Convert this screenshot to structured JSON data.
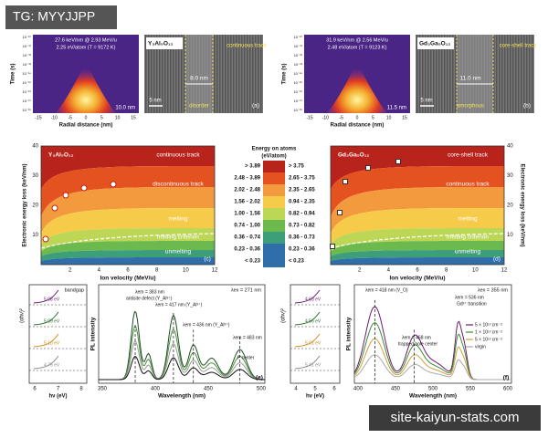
{
  "badge": "TG: MYYJJPP",
  "panel_a": {
    "y_label": "Time (s)",
    "x_label": "Radial distance (nm)",
    "x_ticks": [
      "-15",
      "-10",
      "-5",
      "0",
      "5",
      "10",
      "15"
    ],
    "y_ticks": [
      "10⁻¹⁰",
      "10⁻¹¹",
      "10⁻¹²",
      "10⁻¹³",
      "10⁻¹⁴",
      "10⁻¹⁵",
      "10⁻¹⁶",
      "10⁻¹⁷",
      "10⁻¹⁸"
    ],
    "beam": "27.6 keV/nm @ 2.93 MeV/u",
    "energy": "2.25 eV/atom (T = 9172 K)",
    "radius": "10.0 nm",
    "material": "Y₃Al₅O₁₂",
    "track": "continuous track",
    "width": "8.0 nm",
    "scale": "5 nm",
    "phase": "disorder",
    "tag": "(a)"
  },
  "panel_b": {
    "y_label": "Time (s)",
    "x_label": "Radial distance (nm)",
    "x_ticks": [
      "-15",
      "-10",
      "-5",
      "0",
      "5",
      "10",
      "15"
    ],
    "y_ticks": [
      "10⁻¹⁰",
      "10⁻¹¹",
      "10⁻¹²",
      "10⁻¹³",
      "10⁻¹⁴",
      "10⁻¹⁵",
      "10⁻¹⁶",
      "10⁻¹⁷",
      "10⁻¹⁸"
    ],
    "beam": "31.9 keV/nm @ 2.56 MeV/u",
    "energy": "2.48 eV/atom (T = 9123 K)",
    "radius": "11.5 nm",
    "material": "Gd₃Ga₅O₁₂",
    "track": "core-shell track",
    "width": "11.0 nm",
    "scale": "5 nm",
    "phase": "amorphous",
    "tag": "(b)"
  },
  "legend": {
    "title": "Energy on atoms",
    "unit": "(eV/atom)",
    "left": [
      "> 3.89",
      "2.48 - 3.89",
      "2.02 - 2.48",
      "1.56 - 2.02",
      "1.00 - 1.56",
      "0.74 - 1.00",
      "0.36 - 0.74",
      "0.23 - 0.36",
      "< 0.23"
    ],
    "right": [
      "> 3.75",
      "2.65 - 3.75",
      "2.35 - 2.65",
      "0.94 - 2.35",
      "0.82 - 0.94",
      "0.73 - 0.82",
      "0.36 - 0.73",
      "0.23 - 0.36",
      "< 0.23"
    ]
  },
  "panel_c": {
    "y_label": "Electronic energy loss (keV/nm)",
    "x_label": "Ion velocity (MeV/u)",
    "y_ticks": [
      10,
      20,
      30,
      40
    ],
    "x_ticks": [
      2,
      4,
      6,
      8,
      10,
      12
    ],
    "material": "Y₃Al₅O₁₂",
    "regions": [
      "continuous track",
      "discontinuous track",
      "melting",
      "melting criterion",
      "unmelting"
    ],
    "tag": "(c)"
  },
  "panel_d": {
    "y_label": "Electronic energy loss (keV/nm)",
    "x_label": "Ion velocity (MeV/u)",
    "y_ticks": [
      10,
      20,
      30,
      40
    ],
    "x_ticks": [
      2,
      4,
      6,
      8,
      10,
      12
    ],
    "material": "Gd₃Ga₅O₁₂",
    "regions": [
      "core-shell track",
      "continuous track",
      "melting",
      "melting criterion",
      "unmelting"
    ],
    "tag": "(d)"
  },
  "panel_e": {
    "inset_label": "bandgap",
    "gaps": [
      "5.08 eV",
      "5.09 eV",
      "5.10 eV",
      "4.75 eV"
    ],
    "inset_x_label": "hν (eV)",
    "inset_y_label": "(αhν)²",
    "inset_x_ticks": [
      6,
      7,
      8
    ],
    "y_label": "PL intensity",
    "x_label": "Wavelength (nm)",
    "x_ticks": [
      350,
      400,
      450,
      500
    ],
    "excitation": "λex = 271 nm",
    "peaks": [
      "λem = 383 nm",
      "antisite defect (Y_Al³⁺)",
      "λem = 417 nm (Y_Al³⁺)",
      "λem = 436 nm (Y_Al³⁺)",
      "λem = 483 nm",
      "F center"
    ],
    "tag": "(e)"
  },
  "panel_f": {
    "gaps": [
      "4.63 eV",
      "4.56 eV",
      "5.01 eV",
      "5.41 eV"
    ],
    "inset_x_label": "hν (eV)",
    "inset_y_label": "(αhν)²",
    "inset_x_ticks": [
      4,
      5,
      6
    ],
    "y_label": "PL intensity",
    "x_label": "Wavelength (nm)",
    "x_ticks": [
      400,
      450,
      500,
      550,
      600
    ],
    "excitation": "λex = 355 nm",
    "peaks": [
      "λem = 418 nm (V_O)",
      "λem = 468 nm",
      "trapped hole center",
      "λem = 536 nm",
      "Gd³⁺ transition"
    ],
    "legend": [
      "5 × 10¹³ cm⁻²",
      "1 × 10¹³ cm⁻²",
      "5 × 10¹² cm⁻²",
      "virgin"
    ],
    "tag": "(f)"
  },
  "watermark": "site-kaiyun-stats.com"
}
